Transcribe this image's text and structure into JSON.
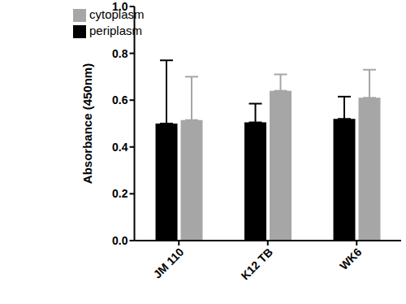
{
  "chart_data": {
    "type": "bar",
    "categories": [
      "JM 110",
      "K12 TB",
      "WK6"
    ],
    "y_label": "Absorbance (450nm)",
    "series": [
      {
        "name": "periplasm",
        "color": "#000000",
        "values": [
          0.5,
          0.505,
          0.52
        ],
        "errors": [
          0.27,
          0.08,
          0.095
        ]
      },
      {
        "name": "cytoplasm",
        "color": "#a6a6a6",
        "values": [
          0.515,
          0.64,
          0.61
        ],
        "errors": [
          0.185,
          0.07,
          0.12
        ]
      }
    ],
    "ylim": [
      0,
      1
    ],
    "yticks": [
      {
        "value": 0,
        "label": "0.0"
      },
      0.2,
      0.4,
      0.6,
      0.8,
      {
        "value": 1,
        "label": "1.0"
      }
    ],
    "grid": false,
    "legend": "upper left"
  }
}
